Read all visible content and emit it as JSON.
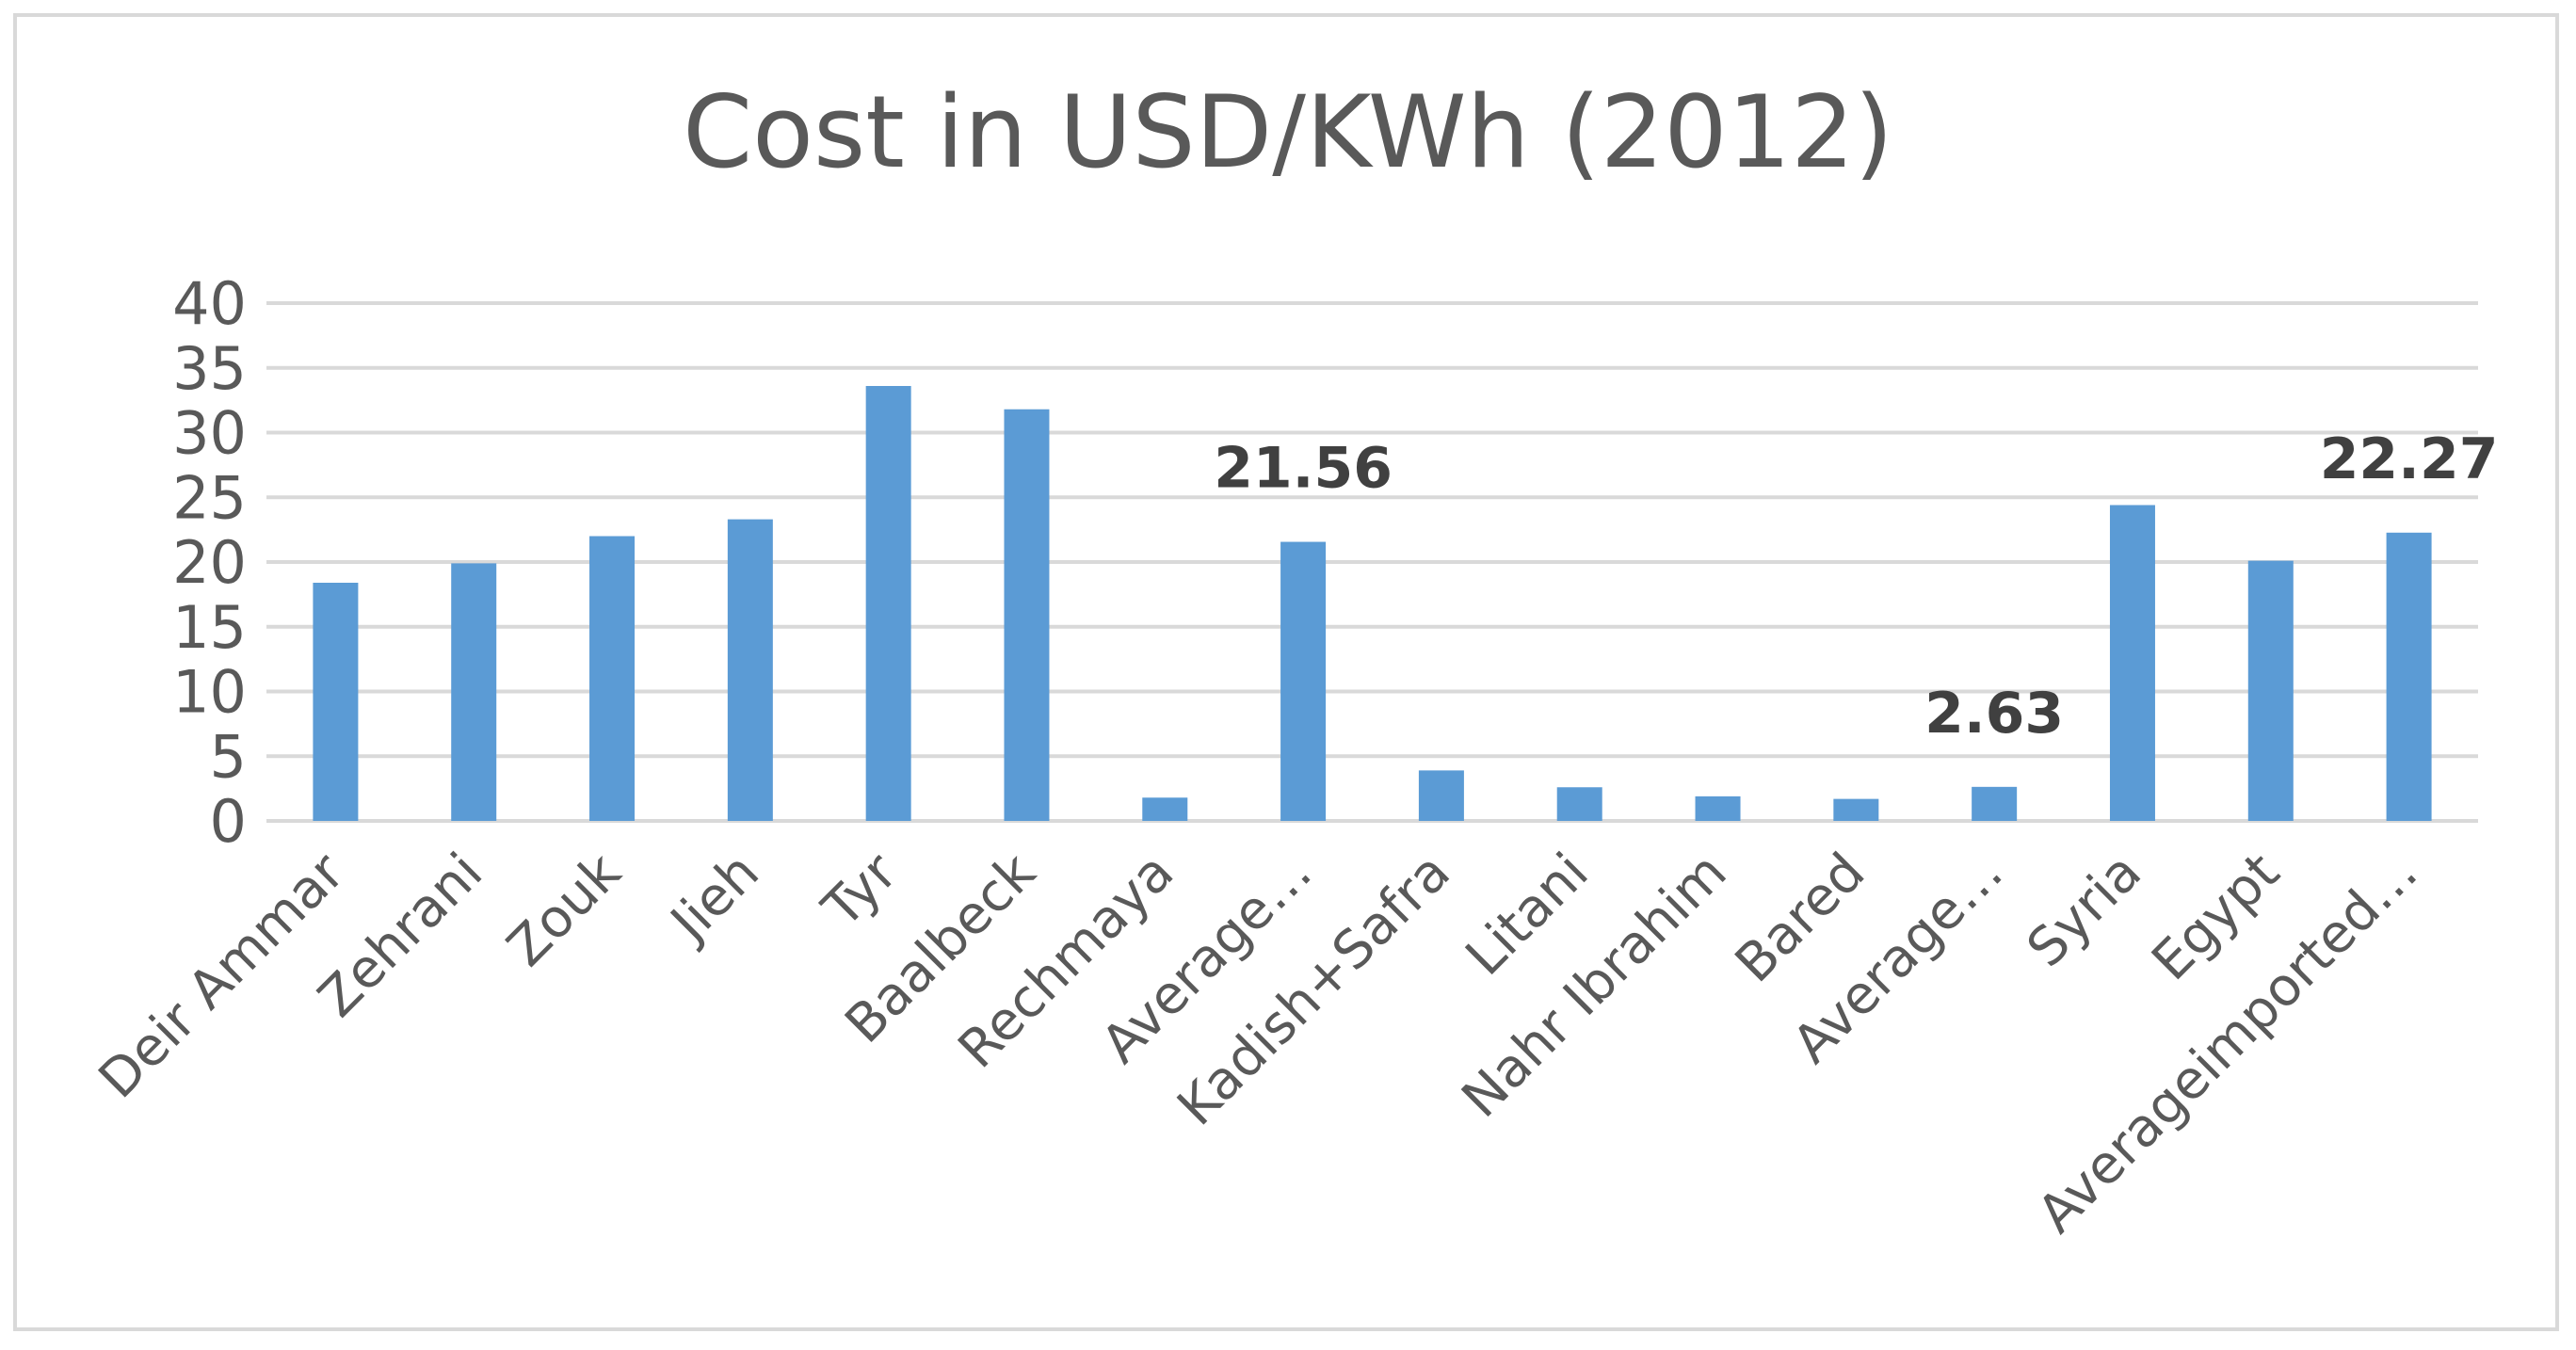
{
  "chart_data": {
    "type": "bar",
    "title": "Cost in USD/KWh (2012)",
    "xlabel": "",
    "ylabel": "",
    "ylim": [
      0,
      40
    ],
    "yticks": [
      0,
      5,
      10,
      15,
      20,
      25,
      30,
      35,
      40
    ],
    "grid": true,
    "legend": "none",
    "bar_color": "#5b9bd5",
    "categories": [
      "Deir Ammar",
      "Zehrani",
      "Zouk",
      "Jieh",
      "Tyr",
      "Baalbeck",
      "Rechmaya",
      "Average…",
      "Kadish+Safra",
      "Litani",
      "Nahr Ibrahim",
      "Bared",
      "Average…",
      "Syria",
      "Egypt",
      "Averageimported…"
    ],
    "values": [
      18.4,
      19.9,
      22.0,
      23.3,
      33.6,
      31.8,
      1.8,
      21.56,
      3.9,
      2.6,
      1.9,
      1.7,
      2.63,
      24.4,
      20.1,
      22.27
    ],
    "data_labels": [
      {
        "index": 7,
        "text": "21.56"
      },
      {
        "index": 12,
        "text": "2.63"
      },
      {
        "index": 15,
        "text": "22.27"
      }
    ]
  }
}
